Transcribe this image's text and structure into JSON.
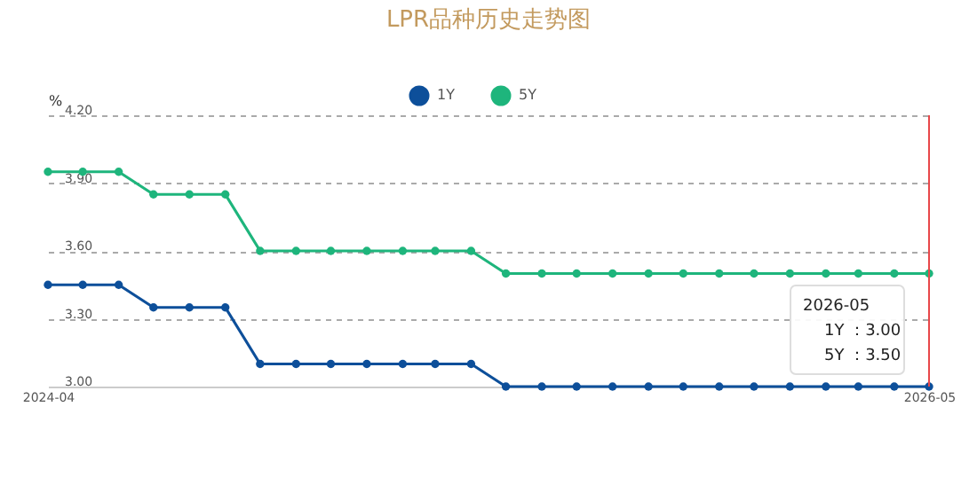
{
  "chart_data": {
    "type": "line",
    "title": "LPR品种历史走势图",
    "ylabel": "%",
    "x": [
      "2024-04",
      "2024-05",
      "2024-06",
      "2024-07",
      "2024-08",
      "2024-09",
      "2024-10",
      "2024-11",
      "2024-12",
      "2025-01",
      "2025-02",
      "2025-03",
      "2025-04",
      "2025-05",
      "2025-06",
      "2025-07",
      "2025-08",
      "2025-09",
      "2025-10",
      "2025-11",
      "2025-12",
      "2026-01",
      "2026-02",
      "2026-03",
      "2026-04",
      "2026-05"
    ],
    "series": [
      {
        "name": "1Y",
        "color": "#0d4f9a",
        "values": [
          3.45,
          3.45,
          3.45,
          3.35,
          3.35,
          3.35,
          3.1,
          3.1,
          3.1,
          3.1,
          3.1,
          3.1,
          3.1,
          3.0,
          3.0,
          3.0,
          3.0,
          3.0,
          3.0,
          3.0,
          3.0,
          3.0,
          3.0,
          3.0,
          3.0,
          3.0
        ]
      },
      {
        "name": "5Y",
        "color": "#1eb57c",
        "values": [
          3.95,
          3.95,
          3.95,
          3.85,
          3.85,
          3.85,
          3.6,
          3.6,
          3.6,
          3.6,
          3.6,
          3.6,
          3.6,
          3.5,
          3.5,
          3.5,
          3.5,
          3.5,
          3.5,
          3.5,
          3.5,
          3.5,
          3.5,
          3.5,
          3.5,
          3.5
        ]
      }
    ],
    "xlim": [
      "2024-04",
      "2026-05"
    ],
    "xticks": [
      "2024-04",
      "2026-05"
    ],
    "ylim": [
      3.0,
      4.2
    ],
    "yticks": [
      {
        "value": 3.0,
        "label": "3.00"
      },
      {
        "value": 3.3,
        "label": "3.30"
      },
      {
        "value": 3.6,
        "label": "3.60"
      },
      {
        "value": 3.9,
        "label": "3.90"
      },
      {
        "value": 4.2,
        "label": "4.20"
      }
    ],
    "grid": "y",
    "legend": "top",
    "marker": "circle",
    "line_style": "solid",
    "ref_lines": [
      {
        "axis": "x",
        "value": "2026-05",
        "label": null,
        "color": "#e8474a"
      }
    ],
    "annotations": [
      "2026-05",
      "1Y ：3.00",
      "5Y ：3.50"
    ]
  }
}
